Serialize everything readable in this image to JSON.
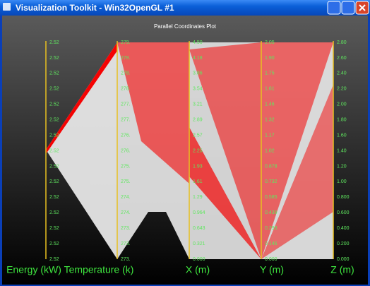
{
  "window": {
    "title": "Visualization Toolkit - Win32OpenGL #1"
  },
  "plot": {
    "title": "Parallel Coordinates Plot",
    "axes": [
      {
        "name": "Energy (kW)",
        "ticks": [
          "2.52",
          "2.52",
          "2.52",
          "2.52",
          "2.52",
          "2.52",
          "2.52",
          "2.52",
          "2.52",
          "2.52",
          "2.52",
          "2.52",
          "2.52",
          "2.52",
          "2.52"
        ]
      },
      {
        "name": "Temperature (k)",
        "ticks": [
          "279.",
          "278.",
          "278.",
          "278.",
          "277.",
          "277.",
          "276.",
          "276.",
          "275.",
          "275.",
          "274.",
          "274.",
          "273.",
          "273.",
          "273."
        ]
      },
      {
        "name": "X (m)",
        "ticks": [
          "4.50",
          "4.18",
          "3.86",
          "3.54",
          "3.21",
          "2.89",
          "2.57",
          "2.25",
          "1.93",
          "1.61",
          "1.29",
          "0.964",
          "0.643",
          "0.321",
          "0.000"
        ]
      },
      {
        "name": "Y (m)",
        "ticks": [
          "2.05",
          "1.90",
          "1.75",
          "1.61",
          "1.46",
          "1.32",
          "1.17",
          "1.02",
          "0.878",
          "0.732",
          "0.585",
          "0.439",
          "0.293",
          "0.146",
          "0.000"
        ]
      },
      {
        "name": "Z (m)",
        "ticks": [
          "2.80",
          "2.60",
          "2.40",
          "2.20",
          "2.00",
          "1.80",
          "1.60",
          "1.40",
          "1.20",
          "1.00",
          "0.800",
          "0.600",
          "0.400",
          "0.200",
          "0.000"
        ]
      }
    ]
  }
}
